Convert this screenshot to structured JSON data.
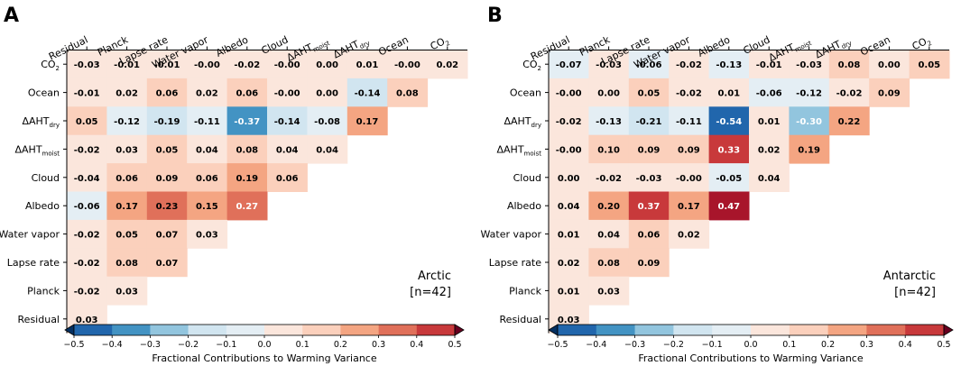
{
  "figure": {
    "colorbar_label": "Fractional Contributions to Warming Variance",
    "colorbar_ticks": [
      "−0.5",
      "−0.4",
      "−0.3",
      "−0.2",
      "−0.1",
      "0.0",
      "0.1",
      "0.2",
      "0.3",
      "0.4",
      "0.5"
    ],
    "colorbar_range": [
      -0.5,
      0.5
    ],
    "colors": [
      "#2166ac",
      "#4393c3",
      "#92c5de",
      "#d1e5f0",
      "#e4eef4",
      "#fbe6dc",
      "#fbd0bc",
      "#f4a582",
      "#e0705a",
      "#c8393b",
      "#a8152b"
    ],
    "cap_colors": {
      "low": "#053061",
      "high": "#67001f"
    }
  },
  "chart_data": [
    {
      "type": "heatmap",
      "panel_letter": "A",
      "region": "Arctic",
      "n_label": "[n=42]",
      "row_labels": [
        {
          "main": "CO",
          "sub": "2"
        },
        {
          "main": "Ocean",
          "sub": ""
        },
        {
          "main": "ΔAHT",
          "sub": "dry"
        },
        {
          "main": "ΔAHT",
          "sub": "moist"
        },
        {
          "main": "Cloud",
          "sub": ""
        },
        {
          "main": "Albedo",
          "sub": ""
        },
        {
          "main": "Water vapor",
          "sub": ""
        },
        {
          "main": "Lapse rate",
          "sub": ""
        },
        {
          "main": "Planck",
          "sub": ""
        },
        {
          "main": "Residual",
          "sub": ""
        }
      ],
      "col_labels": [
        {
          "main": "Residual",
          "sub": ""
        },
        {
          "main": "Planck",
          "sub": ""
        },
        {
          "main": "Lapse rate",
          "sub": ""
        },
        {
          "main": "Water vapor",
          "sub": ""
        },
        {
          "main": "Albedo",
          "sub": ""
        },
        {
          "main": "Cloud",
          "sub": ""
        },
        {
          "main": "ΔAHT",
          "sub": "moist"
        },
        {
          "main": "ΔAHT",
          "sub": "dry"
        },
        {
          "main": "Ocean",
          "sub": ""
        },
        {
          "main": "CO",
          "sub": "2"
        }
      ],
      "values": [
        [
          -0.03,
          -0.01,
          -0.01,
          -0.0,
          -0.02,
          -0.0,
          0.0,
          0.01,
          -0.0,
          0.02
        ],
        [
          -0.01,
          0.02,
          0.06,
          0.02,
          0.06,
          -0.0,
          0.0,
          -0.14,
          0.08
        ],
        [
          0.05,
          -0.12,
          -0.19,
          -0.11,
          -0.37,
          -0.14,
          -0.08,
          0.17
        ],
        [
          -0.02,
          0.03,
          0.05,
          0.04,
          0.08,
          0.04,
          0.04
        ],
        [
          -0.04,
          0.06,
          0.09,
          0.06,
          0.19,
          0.06
        ],
        [
          -0.06,
          0.17,
          0.23,
          0.15,
          0.27
        ],
        [
          -0.02,
          0.05,
          0.07,
          0.03
        ],
        [
          -0.02,
          0.08,
          0.07
        ],
        [
          -0.02,
          0.03
        ],
        [
          0.03
        ]
      ],
      "labels": [
        [
          "-0.03",
          "-0.01",
          "-0.01",
          "-0.00",
          "-0.02",
          "-0.00",
          "0.00",
          "0.01",
          "-0.00",
          "0.02"
        ],
        [
          "-0.01",
          "0.02",
          "0.06",
          "0.02",
          "0.06",
          "-0.00",
          "0.00",
          "-0.14",
          "0.08"
        ],
        [
          "0.05",
          "-0.12",
          "-0.19",
          "-0.11",
          "-0.37",
          "-0.14",
          "-0.08",
          "0.17"
        ],
        [
          "-0.02",
          "0.03",
          "0.05",
          "0.04",
          "0.08",
          "0.04",
          "0.04"
        ],
        [
          "-0.04",
          "0.06",
          "0.09",
          "0.06",
          "0.19",
          "0.06"
        ],
        [
          "-0.06",
          "0.17",
          "0.23",
          "0.15",
          "0.27"
        ],
        [
          "-0.02",
          "0.05",
          "0.07",
          "0.03"
        ],
        [
          "-0.02",
          "0.08",
          "0.07"
        ],
        [
          "-0.02",
          "0.03"
        ],
        [
          "0.03"
        ]
      ]
    },
    {
      "type": "heatmap",
      "panel_letter": "B",
      "region": "Antarctic",
      "n_label": "[n=42]",
      "row_labels": [
        {
          "main": "CO",
          "sub": "2"
        },
        {
          "main": "Ocean",
          "sub": ""
        },
        {
          "main": "ΔAHT",
          "sub": "dry"
        },
        {
          "main": "ΔAHT",
          "sub": "moist"
        },
        {
          "main": "Cloud",
          "sub": ""
        },
        {
          "main": "Albedo",
          "sub": ""
        },
        {
          "main": "Water vapor",
          "sub": ""
        },
        {
          "main": "Lapse rate",
          "sub": ""
        },
        {
          "main": "Planck",
          "sub": ""
        },
        {
          "main": "Residual",
          "sub": ""
        }
      ],
      "col_labels": [
        {
          "main": "Residual",
          "sub": ""
        },
        {
          "main": "Planck",
          "sub": ""
        },
        {
          "main": "Lapse rate",
          "sub": ""
        },
        {
          "main": "Water vapor",
          "sub": ""
        },
        {
          "main": "Albedo",
          "sub": ""
        },
        {
          "main": "Cloud",
          "sub": ""
        },
        {
          "main": "ΔAHT",
          "sub": "moist"
        },
        {
          "main": "ΔAHT",
          "sub": "dry"
        },
        {
          "main": "Ocean",
          "sub": ""
        },
        {
          "main": "CO",
          "sub": "2"
        }
      ],
      "values": [
        [
          -0.07,
          -0.03,
          -0.06,
          -0.02,
          -0.13,
          -0.01,
          -0.03,
          0.08,
          0.0,
          0.05
        ],
        [
          -0.0,
          0.0,
          0.05,
          -0.02,
          0.01,
          -0.06,
          -0.12,
          -0.02,
          0.09
        ],
        [
          -0.02,
          -0.13,
          -0.21,
          -0.11,
          -0.54,
          0.01,
          -0.3,
          0.22
        ],
        [
          -0.0,
          0.1,
          0.09,
          0.09,
          0.33,
          0.02,
          0.19
        ],
        [
          0.0,
          -0.02,
          -0.03,
          -0.0,
          -0.05,
          0.04
        ],
        [
          0.04,
          0.2,
          0.37,
          0.17,
          0.47
        ],
        [
          0.01,
          0.04,
          0.06,
          0.02
        ],
        [
          0.02,
          0.08,
          0.09
        ],
        [
          0.01,
          0.03
        ],
        [
          0.03
        ]
      ],
      "labels": [
        [
          "-0.07",
          "-0.03",
          "-0.06",
          "-0.02",
          "-0.13",
          "-0.01",
          "-0.03",
          "0.08",
          "0.00",
          "0.05"
        ],
        [
          "-0.00",
          "0.00",
          "0.05",
          "-0.02",
          "0.01",
          "-0.06",
          "-0.12",
          "-0.02",
          "0.09"
        ],
        [
          "-0.02",
          "-0.13",
          "-0.21",
          "-0.11",
          "-0.54",
          "0.01",
          "-0.30",
          "0.22"
        ],
        [
          "-0.00",
          "0.10",
          "0.09",
          "0.09",
          "0.33",
          "0.02",
          "0.19"
        ],
        [
          "0.00",
          "-0.02",
          "-0.03",
          "-0.00",
          "-0.05",
          "0.04"
        ],
        [
          "0.04",
          "0.20",
          "0.37",
          "0.17",
          "0.47"
        ],
        [
          "0.01",
          "0.04",
          "0.06",
          "0.02"
        ],
        [
          "0.02",
          "0.08",
          "0.09"
        ],
        [
          "0.01",
          "0.03"
        ],
        [
          "0.03"
        ]
      ]
    }
  ]
}
